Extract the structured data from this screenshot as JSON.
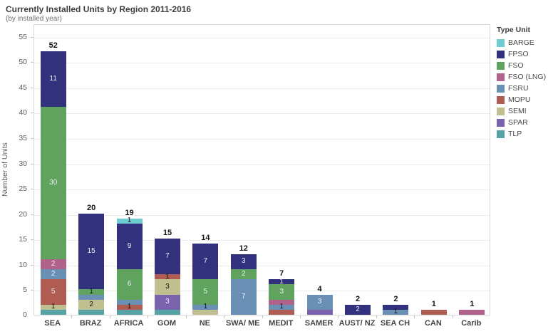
{
  "header": {
    "title": "Currently Installed Units by Region 2011-2016",
    "subtitle": "(by installed year)"
  },
  "chart_data": {
    "type": "bar",
    "stacked": true,
    "title": "Currently Installed Units by Region 2011-2016",
    "subtitle": "(by installed year)",
    "xlabel": "",
    "ylabel": "Number of Units",
    "ylim": [
      0,
      57.5
    ],
    "ytick_step": 5,
    "ytick_max": 55,
    "grid": true,
    "legend_position": "right",
    "legend_title": "Type Unit",
    "unit_types": [
      {
        "name": "BARGE",
        "color": "#6fcdd1"
      },
      {
        "name": "FPSO",
        "color": "#31317d"
      },
      {
        "name": "FSO",
        "color": "#5fa35f"
      },
      {
        "name": "FSO (LNG)",
        "color": "#b1628a"
      },
      {
        "name": "FSRU",
        "color": "#6b90b5"
      },
      {
        "name": "MOPU",
        "color": "#b15c53"
      },
      {
        "name": "SEMI",
        "color": "#c0bf90"
      },
      {
        "name": "SPAR",
        "color": "#7b62ac"
      },
      {
        "name": "TLP",
        "color": "#56a2a4"
      }
    ],
    "categories": [
      "SEA",
      "BRAZ",
      "AFRICA",
      "GOM",
      "NE",
      "SWA/ ME",
      "MEDIT",
      "SAMER",
      "AUST/ NZ",
      "SEA CH",
      "CAN",
      "Carib"
    ],
    "bars": [
      {
        "category": "SEA",
        "total": 52,
        "segments": [
          {
            "type": "FPSO",
            "value": 11,
            "label": "11",
            "label_style": "light"
          },
          {
            "type": "FSO",
            "value": 30,
            "label": "30",
            "label_style": "light"
          },
          {
            "type": "FSO (LNG)",
            "value": 2,
            "label": "2",
            "label_style": "light"
          },
          {
            "type": "FSRU",
            "value": 2,
            "label": "2",
            "label_style": "light"
          },
          {
            "type": "MOPU",
            "value": 5,
            "label": "5",
            "label_style": "light"
          },
          {
            "type": "SEMI",
            "value": 1,
            "label": "1",
            "label_style": "dark"
          },
          {
            "type": "TLP",
            "value": 1,
            "label": "",
            "label_style": "none"
          }
        ]
      },
      {
        "category": "BRAZ",
        "total": 20,
        "segments": [
          {
            "type": "FPSO",
            "value": 15,
            "label": "15",
            "label_style": "light"
          },
          {
            "type": "FSO",
            "value": 1,
            "label": "1",
            "label_style": "dark"
          },
          {
            "type": "FSRU",
            "value": 1,
            "label": "",
            "label_style": "none"
          },
          {
            "type": "SEMI",
            "value": 2,
            "label": "2",
            "label_style": "dark"
          },
          {
            "type": "TLP",
            "value": 1,
            "label": "",
            "label_style": "none"
          }
        ]
      },
      {
        "category": "AFRICA",
        "total": 19,
        "segments": [
          {
            "type": "BARGE",
            "value": 1,
            "label": "1",
            "label_style": "dark"
          },
          {
            "type": "FPSO",
            "value": 9,
            "label": "9",
            "label_style": "light"
          },
          {
            "type": "FSO",
            "value": 6,
            "label": "6",
            "label_style": "light"
          },
          {
            "type": "FSRU",
            "value": 1,
            "label": "",
            "label_style": "none"
          },
          {
            "type": "MOPU",
            "value": 1,
            "label": "1",
            "label_style": "dark"
          },
          {
            "type": "TLP",
            "value": 1,
            "label": "",
            "label_style": "none"
          }
        ]
      },
      {
        "category": "GOM",
        "total": 15,
        "segments": [
          {
            "type": "FPSO",
            "value": 7,
            "label": "7",
            "label_style": "light"
          },
          {
            "type": "MOPU",
            "value": 1,
            "label": "1",
            "label_style": "dark"
          },
          {
            "type": "SEMI",
            "value": 3,
            "label": "3",
            "label_style": "dark"
          },
          {
            "type": "SPAR",
            "value": 3,
            "label": "3",
            "label_style": "light"
          },
          {
            "type": "TLP",
            "value": 1,
            "label": "",
            "label_style": "none"
          }
        ]
      },
      {
        "category": "NE",
        "total": 14,
        "segments": [
          {
            "type": "FPSO",
            "value": 7,
            "label": "7",
            "label_style": "light"
          },
          {
            "type": "FSO",
            "value": 5,
            "label": "5",
            "label_style": "light"
          },
          {
            "type": "FSRU",
            "value": 1,
            "label": "1",
            "label_style": "dark"
          },
          {
            "type": "SEMI",
            "value": 1,
            "label": "",
            "label_style": "none"
          }
        ]
      },
      {
        "category": "SWA/ ME",
        "total": 12,
        "segments": [
          {
            "type": "FPSO",
            "value": 3,
            "label": "3",
            "label_style": "light"
          },
          {
            "type": "FSO",
            "value": 2,
            "label": "2",
            "label_style": "light"
          },
          {
            "type": "FSRU",
            "value": 7,
            "label": "7",
            "label_style": "light"
          }
        ]
      },
      {
        "category": "MEDIT",
        "total": 7,
        "segments": [
          {
            "type": "FPSO",
            "value": 1,
            "label": "1",
            "label_style": "light"
          },
          {
            "type": "FSO",
            "value": 3,
            "label": "3",
            "label_style": "light"
          },
          {
            "type": "FSO (LNG)",
            "value": 1,
            "label": "",
            "label_style": "none"
          },
          {
            "type": "FSRU",
            "value": 1,
            "label": "1",
            "label_style": "dark"
          },
          {
            "type": "MOPU",
            "value": 1,
            "label": "",
            "label_style": "none"
          }
        ]
      },
      {
        "category": "SAMER",
        "total": 4,
        "segments": [
          {
            "type": "FSRU",
            "value": 3,
            "label": "3",
            "label_style": "light"
          },
          {
            "type": "SPAR",
            "value": 1,
            "label": "",
            "label_style": "none"
          }
        ]
      },
      {
        "category": "AUST/ NZ",
        "total": 2,
        "segments": [
          {
            "type": "FPSO",
            "value": 2,
            "label": "2",
            "label_style": "light"
          }
        ]
      },
      {
        "category": "SEA CH",
        "total": 2,
        "segments": [
          {
            "type": "FPSO",
            "value": 1,
            "label": "",
            "label_style": "none"
          },
          {
            "type": "FSRU",
            "value": 1,
            "label": "1",
            "label_style": "dark"
          }
        ]
      },
      {
        "category": "CAN",
        "total": 1,
        "segments": [
          {
            "type": "MOPU",
            "value": 1,
            "label": "",
            "label_style": "none"
          }
        ]
      },
      {
        "category": "Carib",
        "total": 1,
        "segments": [
          {
            "type": "FSO (LNG)",
            "value": 1,
            "label": "",
            "label_style": "none"
          }
        ]
      }
    ]
  }
}
